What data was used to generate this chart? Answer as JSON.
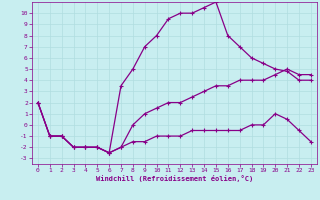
{
  "xlabel": "Windchill (Refroidissement éolien,°C)",
  "background_color": "#c8eef0",
  "grid_color": "#b0dde0",
  "line_color": "#880088",
  "xlim": [
    -0.5,
    23.5
  ],
  "ylim": [
    -3.5,
    11.0
  ],
  "xticks": [
    0,
    1,
    2,
    3,
    4,
    5,
    6,
    7,
    8,
    9,
    10,
    11,
    12,
    13,
    14,
    15,
    16,
    17,
    18,
    19,
    20,
    21,
    22,
    23
  ],
  "yticks": [
    -3,
    -2,
    -1,
    0,
    1,
    2,
    3,
    4,
    5,
    6,
    7,
    8,
    9,
    10
  ],
  "line2_x": [
    0,
    1,
    2,
    3,
    4,
    5,
    6,
    7,
    8,
    9,
    10,
    11,
    12,
    13,
    14,
    15,
    16,
    17,
    18,
    19,
    20,
    21,
    22,
    23
  ],
  "line2_y": [
    2,
    -1,
    -1,
    -2,
    -2,
    -2,
    -2.5,
    3.5,
    5,
    7,
    8,
    9.5,
    10,
    10,
    10.5,
    11,
    8,
    7,
    6,
    5.5,
    5,
    4.8,
    4,
    4
  ],
  "line1_x": [
    0,
    1,
    2,
    3,
    4,
    5,
    6,
    7,
    8,
    9,
    10,
    11,
    12,
    13,
    14,
    15,
    16,
    17,
    18,
    19,
    20,
    21,
    22,
    23
  ],
  "line1_y": [
    2,
    -1,
    -1,
    -2,
    -2,
    -2,
    -2.5,
    -2,
    0,
    1,
    1.5,
    2,
    2,
    2.5,
    3,
    3.5,
    3.5,
    4,
    4,
    4,
    4.5,
    5,
    4.5,
    4.5
  ],
  "line3_x": [
    0,
    1,
    2,
    3,
    4,
    5,
    6,
    7,
    8,
    9,
    10,
    11,
    12,
    13,
    14,
    15,
    16,
    17,
    18,
    19,
    20,
    21,
    22,
    23
  ],
  "line3_y": [
    2,
    -1,
    -1,
    -2,
    -2,
    -2,
    -2.5,
    -2,
    -1.5,
    -1.5,
    -1,
    -1,
    -1,
    -0.5,
    -0.5,
    -0.5,
    -0.5,
    -0.5,
    0,
    0,
    1,
    0.5,
    -0.5,
    -1.5
  ]
}
